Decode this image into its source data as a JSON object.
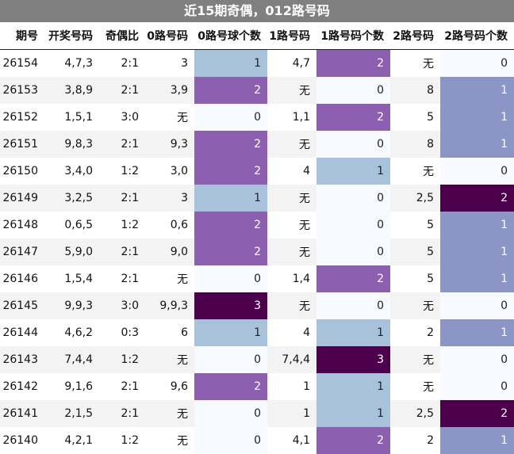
{
  "title": "近15期奇偶，012路号码",
  "headers": [
    "期号",
    "开奖号码",
    "奇偶比",
    "0路号码",
    "0路号球个数",
    "1路号码",
    "1路号码个数",
    "2路号码",
    "2路号码个数"
  ],
  "rows": [
    [
      "26154",
      "4,7,3",
      "2:1",
      "3",
      "1",
      "4,7",
      "2",
      "无",
      "0"
    ],
    [
      "26153",
      "3,8,9",
      "2:1",
      "3,9",
      "2",
      "无",
      "0",
      "8",
      "1"
    ],
    [
      "26152",
      "1,5,1",
      "3:0",
      "无",
      "0",
      "1,1",
      "2",
      "5",
      "1"
    ],
    [
      "26151",
      "9,8,3",
      "2:1",
      "9,3",
      "2",
      "无",
      "0",
      "8",
      "1"
    ],
    [
      "26150",
      "3,4,0",
      "1:2",
      "3,0",
      "2",
      "4",
      "1",
      "无",
      "0"
    ],
    [
      "26149",
      "3,2,5",
      "2:1",
      "3",
      "1",
      "无",
      "0",
      "2,5",
      "2"
    ],
    [
      "26148",
      "0,6,5",
      "1:2",
      "0,6",
      "2",
      "无",
      "0",
      "5",
      "1"
    ],
    [
      "26147",
      "5,9,0",
      "2:1",
      "9,0",
      "2",
      "无",
      "0",
      "5",
      "1"
    ],
    [
      "26146",
      "1,5,4",
      "2:1",
      "无",
      "0",
      "1,4",
      "2",
      "5",
      "1"
    ],
    [
      "26145",
      "9,9,3",
      "3:0",
      "9,9,3",
      "3",
      "无",
      "0",
      "无",
      "0"
    ],
    [
      "26144",
      "4,6,2",
      "0:3",
      "6",
      "1",
      "4",
      "1",
      "2",
      "1"
    ],
    [
      "26143",
      "7,4,4",
      "1:2",
      "无",
      "0",
      "7,4,4",
      "3",
      "无",
      "0"
    ],
    [
      "26142",
      "9,1,6",
      "2:1",
      "9,6",
      "2",
      "1",
      "1",
      "无",
      "0"
    ],
    [
      "26141",
      "2,1,5",
      "2:1",
      "无",
      "0",
      "1",
      "1",
      "2,5",
      "2"
    ],
    [
      "26140",
      "4,2,1",
      "1:2",
      "无",
      "0",
      "4,1",
      "2",
      "2",
      "1"
    ]
  ],
  "colors": {
    "title_bg": "#808080",
    "count_0": "#f7fbff",
    "count_1_blue": "#a8c2dc",
    "count_1_periwinkle": "#8c96c6",
    "count_2_purple": "#8c5fb0",
    "count_3_dark": "#4d004b"
  }
}
